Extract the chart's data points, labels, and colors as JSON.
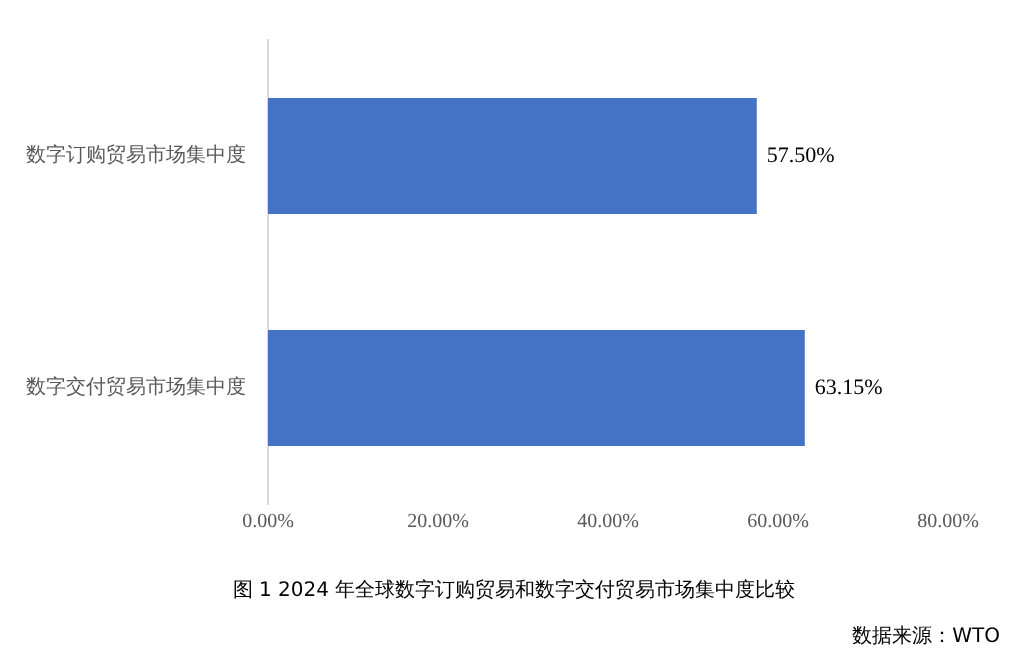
{
  "chart_data": {
    "type": "bar",
    "orientation": "horizontal",
    "title": "图 1 2024 年全球数字订购贸易和数字交付贸易市场集中度比较",
    "categories": [
      "数字订购贸易市场集中度",
      "数字交付贸易市场集中度"
    ],
    "series": [
      {
        "color": "#4472c4",
        "values": [
          57.5,
          63.15
        ],
        "value_labels": [
          "57.50%",
          "63.15%"
        ]
      }
    ],
    "xlim": [
      0,
      80
    ],
    "xticks": [
      {
        "value": 0,
        "label": "0.00%"
      },
      {
        "value": 20,
        "label": "20.00%"
      },
      {
        "value": 40,
        "label": "40.00%"
      },
      {
        "value": 60,
        "label": "60.00%"
      },
      {
        "value": 80,
        "label": "80.00%"
      }
    ],
    "grid": false,
    "legend": false,
    "annotations": [
      "数据来源：WTO"
    ]
  }
}
